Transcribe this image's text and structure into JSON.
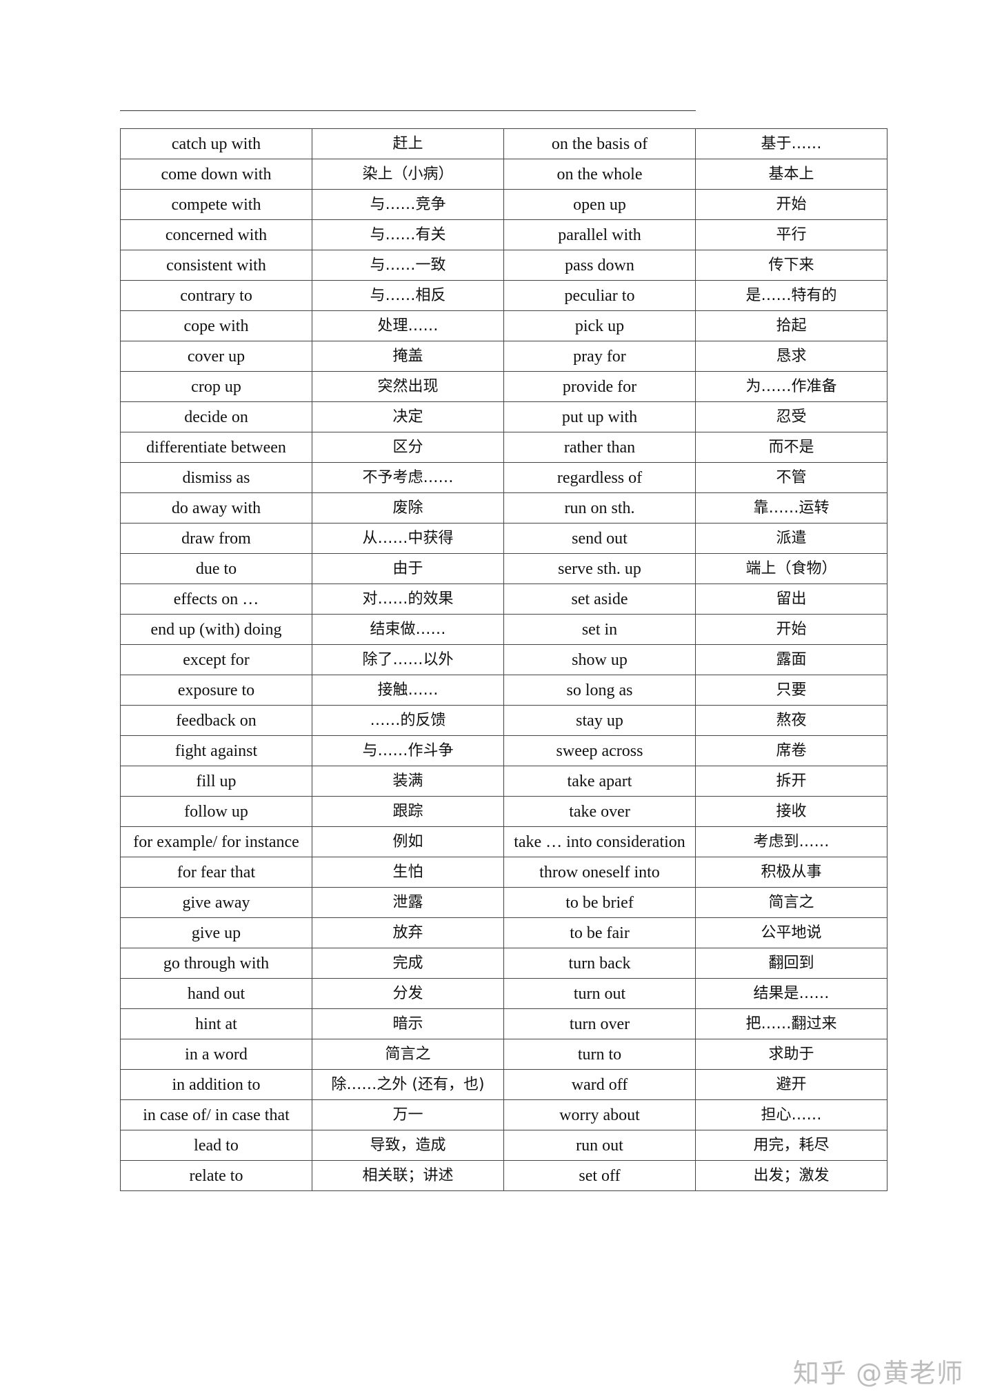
{
  "rows": [
    [
      "catch up with",
      "赶上",
      "on the basis of",
      "基于……"
    ],
    [
      "come down with",
      "染上（小病）",
      "on the whole",
      "基本上"
    ],
    [
      "compete with",
      "与……竞争",
      "open up",
      "开始"
    ],
    [
      "concerned with",
      "与……有关",
      "parallel with",
      "平行"
    ],
    [
      "consistent with",
      "与……一致",
      "pass down",
      "传下来"
    ],
    [
      "contrary to",
      "与……相反",
      "peculiar to",
      "是……特有的"
    ],
    [
      "cope with",
      "处理……",
      "pick up",
      "拾起"
    ],
    [
      "cover up",
      "掩盖",
      "pray for",
      "恳求"
    ],
    [
      "crop up",
      "突然出现",
      "provide for",
      "为……作准备"
    ],
    [
      "decide on",
      "决定",
      "put up with",
      "忍受"
    ],
    [
      "differentiate between",
      "区分",
      "rather than",
      "而不是"
    ],
    [
      "dismiss as",
      "不予考虑……",
      "regardless of",
      "不管"
    ],
    [
      "do away with",
      "废除",
      "run on sth.",
      "靠……运转"
    ],
    [
      "draw from",
      "从……中获得",
      "send out",
      "派遣"
    ],
    [
      "due to",
      "由于",
      "serve sth. up",
      "端上（食物）"
    ],
    [
      "effects on …",
      "对……的效果",
      "set aside",
      "留出"
    ],
    [
      "end up (with) doing",
      "结束做……",
      "set in",
      "开始"
    ],
    [
      "except for",
      "除了……以外",
      "show up",
      "露面"
    ],
    [
      "exposure to",
      "接触……",
      "so long as",
      "只要"
    ],
    [
      "feedback on",
      "……的反馈",
      "stay up",
      "熬夜"
    ],
    [
      "fight against",
      "与……作斗争",
      "sweep across",
      "席卷"
    ],
    [
      "fill up",
      "装满",
      "take apart",
      "拆开"
    ],
    [
      "follow up",
      "跟踪",
      "take over",
      "接收"
    ],
    [
      "for example/ for instance",
      "例如",
      "take … into consideration",
      "考虑到……"
    ],
    [
      "for fear that",
      "生怕",
      "throw oneself into",
      "积极从事"
    ],
    [
      "give away",
      "泄露",
      "to be brief",
      "简言之"
    ],
    [
      "give up",
      "放弃",
      "to be fair",
      "公平地说"
    ],
    [
      "go through with",
      "完成",
      "turn back",
      "翻回到"
    ],
    [
      "hand out",
      "分发",
      "turn out",
      "结果是……"
    ],
    [
      "hint at",
      "暗示",
      "turn over",
      "把……翻过来"
    ],
    [
      "in a word",
      "简言之",
      "turn to",
      "求助于"
    ],
    [
      "in addition to",
      "除……之外 (还有，也)",
      "ward off",
      "避开"
    ],
    [
      "in case of/ in case that",
      "万一",
      "worry about",
      "担心……"
    ],
    [
      "lead to",
      "导致，造成",
      "run out",
      "用完，耗尽"
    ],
    [
      "relate to",
      "相关联；讲述",
      "set off",
      "出发；激发"
    ]
  ],
  "watermark": "知乎 @黄老师"
}
